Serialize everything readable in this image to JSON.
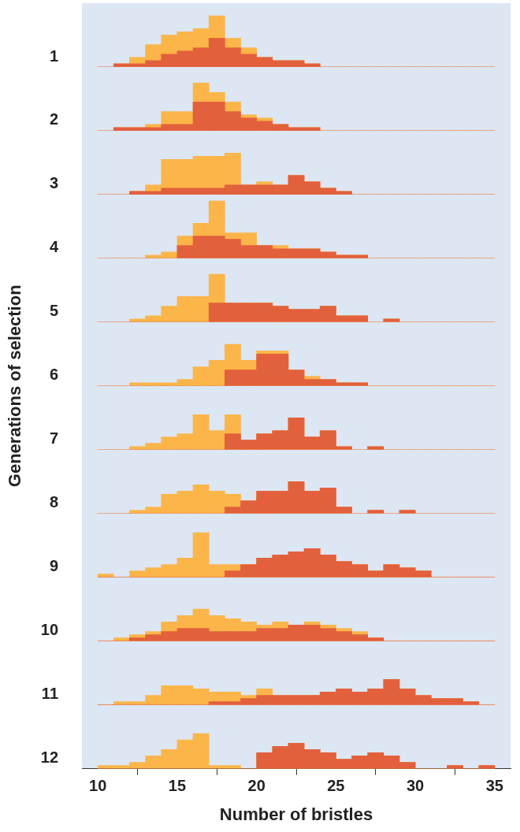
{
  "chart_data": {
    "type": "histogram",
    "xlabel": "Number of bristles",
    "ylabel": "Generations of selection",
    "bins": [
      10,
      11,
      12,
      13,
      14,
      15,
      16,
      17,
      18,
      19,
      20,
      21,
      22,
      23,
      24,
      25,
      26,
      27,
      28,
      29,
      30,
      31,
      32,
      33,
      34,
      35
    ],
    "xlim": [
      9,
      36
    ],
    "xticks": [
      10,
      15,
      20,
      25,
      30,
      35
    ],
    "ylim": [
      0,
      20
    ],
    "tick_labels": "x",
    "grid": false,
    "stacked": false,
    "rows": [
      {
        "label": "1",
        "series": [
          {
            "color": "#fbb549",
            "values": [
              0,
              1,
              3,
              7,
              10,
              11,
              12,
              16,
              9,
              6,
              3,
              2,
              2,
              1,
              0,
              0,
              0,
              0,
              0,
              0,
              0,
              0,
              0,
              0,
              0
            ]
          },
          {
            "color": "#e2603c",
            "values": [
              0,
              1,
              1,
              2,
              4,
              5,
              6,
              9,
              6,
              4,
              3,
              2,
              2,
              1,
              0,
              0,
              0,
              0,
              0,
              0,
              0,
              0,
              0,
              0,
              0
            ]
          }
        ]
      },
      {
        "label": "2",
        "series": [
          {
            "color": "#fbb549",
            "values": [
              0,
              1,
              1,
              2,
              6,
              6,
              15,
              12,
              9,
              5,
              4,
              2,
              1,
              1,
              0,
              0,
              0,
              0,
              0,
              0,
              0,
              0,
              0,
              0,
              0
            ]
          },
          {
            "color": "#e2603c",
            "values": [
              0,
              1,
              1,
              1,
              2,
              2,
              9,
              9,
              6,
              4,
              3,
              2,
              1,
              1,
              0,
              0,
              0,
              0,
              0,
              0,
              0,
              0,
              0,
              0,
              0
            ]
          }
        ]
      },
      {
        "label": "3",
        "series": [
          {
            "color": "#fbb549",
            "values": [
              0,
              0,
              1,
              3,
              11,
              11,
              12,
              12,
              13,
              3,
              4,
              3,
              6,
              4,
              2,
              1,
              0,
              0,
              0,
              0,
              0,
              0,
              0,
              0,
              0
            ]
          },
          {
            "color": "#e2603c",
            "values": [
              0,
              0,
              1,
              1,
              2,
              2,
              2,
              2,
              3,
              3,
              3,
              3,
              6,
              4,
              2,
              1,
              0,
              0,
              0,
              0,
              0,
              0,
              0,
              0,
              0
            ]
          }
        ]
      },
      {
        "label": "4",
        "series": [
          {
            "color": "#fbb549",
            "values": [
              0,
              0,
              0,
              1,
              2,
              7,
              11,
              18,
              8,
              8,
              4,
              4,
              3,
              3,
              2,
              1,
              1,
              0,
              0,
              0,
              0,
              0,
              0,
              0,
              0
            ]
          },
          {
            "color": "#e2603c",
            "values": [
              0,
              0,
              0,
              0,
              0,
              4,
              7,
              7,
              6,
              4,
              4,
              3,
              3,
              3,
              2,
              1,
              1,
              0,
              0,
              0,
              0,
              0,
              0,
              0,
              0
            ]
          }
        ]
      },
      {
        "label": "5",
        "series": [
          {
            "color": "#fbb549",
            "values": [
              0,
              0,
              1,
              2,
              5,
              8,
              8,
              15,
              6,
              6,
              6,
              5,
              4,
              4,
              5,
              2,
              2,
              0,
              1,
              0,
              0,
              0,
              0,
              0,
              0
            ]
          },
          {
            "color": "#e2603c",
            "values": [
              0,
              0,
              0,
              0,
              0,
              0,
              0,
              6,
              6,
              6,
              6,
              5,
              4,
              4,
              5,
              2,
              2,
              0,
              1,
              0,
              0,
              0,
              0,
              0,
              0
            ]
          }
        ]
      },
      {
        "label": "6",
        "series": [
          {
            "color": "#fbb549",
            "values": [
              0,
              0,
              1,
              1,
              1,
              2,
              6,
              8,
              13,
              8,
              11,
              11,
              5,
              3,
              2,
              1,
              1,
              0,
              0,
              0,
              0,
              0,
              0,
              0,
              0
            ]
          },
          {
            "color": "#e2603c",
            "values": [
              0,
              0,
              0,
              0,
              0,
              0,
              0,
              0,
              5,
              5,
              10,
              10,
              5,
              2,
              2,
              1,
              1,
              0,
              0,
              0,
              0,
              0,
              0,
              0,
              0
            ]
          }
        ]
      },
      {
        "label": "7",
        "series": [
          {
            "color": "#fbb549",
            "values": [
              0,
              0,
              1,
              2,
              4,
              5,
              11,
              6,
              11,
              3,
              5,
              6,
              10,
              4,
              6,
              1,
              0,
              1,
              0,
              0,
              0,
              0,
              0,
              0,
              0
            ]
          },
          {
            "color": "#e2603c",
            "values": [
              0,
              0,
              0,
              0,
              0,
              0,
              0,
              0,
              5,
              3,
              5,
              6,
              10,
              4,
              6,
              1,
              0,
              1,
              0,
              0,
              0,
              0,
              0,
              0,
              0
            ]
          }
        ]
      },
      {
        "label": "8",
        "series": [
          {
            "color": "#fbb549",
            "values": [
              0,
              0,
              1,
              2,
              6,
              7,
              9,
              7,
              6,
              4,
              7,
              7,
              10,
              7,
              8,
              2,
              0,
              1,
              0,
              1,
              0,
              0,
              0,
              0,
              0
            ]
          },
          {
            "color": "#e2603c",
            "values": [
              0,
              0,
              0,
              0,
              0,
              0,
              0,
              0,
              2,
              4,
              7,
              7,
              10,
              7,
              8,
              2,
              0,
              1,
              0,
              1,
              0,
              0,
              0,
              0,
              0
            ]
          }
        ]
      },
      {
        "label": "9",
        "series": [
          {
            "color": "#fbb549",
            "values": [
              1,
              0,
              2,
              3,
              4,
              6,
              14,
              4,
              4,
              4,
              6,
              7,
              8,
              9,
              7,
              5,
              4,
              2,
              4,
              3,
              2,
              0,
              0,
              0,
              0
            ]
          },
          {
            "color": "#e2603c",
            "values": [
              0,
              0,
              0,
              0,
              0,
              0,
              0,
              0,
              2,
              4,
              6,
              7,
              8,
              9,
              7,
              5,
              4,
              2,
              4,
              3,
              2,
              0,
              0,
              0,
              0
            ]
          }
        ]
      },
      {
        "label": "10",
        "series": [
          {
            "color": "#fbb549",
            "values": [
              0,
              1,
              2,
              3,
              6,
              8,
              10,
              8,
              7,
              6,
              5,
              6,
              5,
              6,
              5,
              4,
              3,
              1,
              0,
              0,
              0,
              0,
              0,
              0,
              0
            ]
          },
          {
            "color": "#e2603c",
            "values": [
              0,
              0,
              1,
              2,
              3,
              4,
              4,
              3,
              3,
              3,
              4,
              4,
              5,
              5,
              4,
              3,
              2,
              1,
              0,
              0,
              0,
              0,
              0,
              0,
              0
            ]
          }
        ]
      },
      {
        "label": "11",
        "series": [
          {
            "color": "#fbb549",
            "values": [
              0,
              1,
              1,
              3,
              6,
              6,
              5,
              4,
              4,
              3,
              5,
              3,
              3,
              3,
              4,
              5,
              4,
              5,
              8,
              5,
              3,
              2,
              2,
              1,
              0
            ]
          },
          {
            "color": "#e2603c",
            "values": [
              0,
              0,
              0,
              0,
              0,
              0,
              0,
              1,
              1,
              2,
              3,
              3,
              3,
              3,
              4,
              5,
              4,
              5,
              8,
              5,
              3,
              2,
              2,
              1,
              0
            ]
          }
        ]
      },
      {
        "label": "12",
        "series": [
          {
            "color": "#fbb549",
            "values": [
              1,
              1,
              2,
              4,
              6,
              9,
              11,
              1,
              1,
              0,
              5,
              7,
              8,
              6,
              5,
              3,
              4,
              5,
              4,
              2,
              0,
              0,
              1,
              0,
              1
            ]
          },
          {
            "color": "#e2603c",
            "values": [
              0,
              0,
              0,
              0,
              0,
              0,
              0,
              0,
              0,
              0,
              5,
              7,
              8,
              6,
              5,
              3,
              4,
              5,
              4,
              2,
              0,
              0,
              1,
              0,
              1
            ]
          }
        ]
      }
    ]
  }
}
